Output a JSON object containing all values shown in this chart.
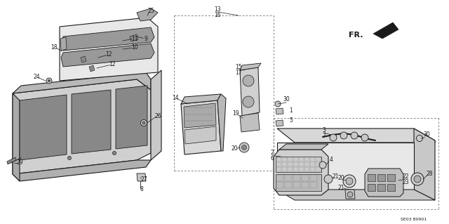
{
  "bg_color": "#ffffff",
  "line_color": "#1a1a1a",
  "fig_width": 6.4,
  "fig_height": 3.19,
  "dpi": 100,
  "note_code": "SE03 80901",
  "fr_label": "FR."
}
